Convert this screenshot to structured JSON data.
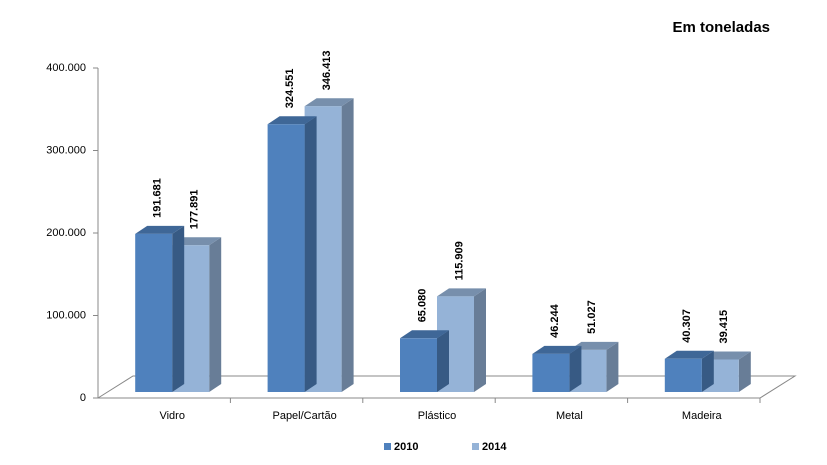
{
  "chart_data": {
    "type": "bar3d",
    "annotation": "Em toneladas",
    "categories": [
      "Vidro",
      "Papel/Cartão",
      "Plástico",
      "Metal",
      "Madeira"
    ],
    "series": [
      {
        "name": "2010",
        "color": "#4f81bd",
        "values": [
          191681,
          324551,
          65080,
          46244,
          40307
        ],
        "value_labels": [
          "191.681",
          "324.551",
          "65.080",
          "46.244",
          "40.307"
        ]
      },
      {
        "name": "2014",
        "color": "#95b3d7",
        "values": [
          177891,
          346413,
          115909,
          51027,
          39415
        ],
        "value_labels": [
          "177.891",
          "346.413",
          "115.909",
          "51.027",
          "39.415"
        ]
      }
    ],
    "ylim": [
      0,
      400000
    ],
    "yticks": [
      0,
      {
        "value": 100000,
        "label": "100.000"
      },
      {
        "value": 200000,
        "label": "200.000"
      },
      {
        "value": 300000,
        "label": "300.000"
      },
      {
        "value": 400000,
        "label": "400.000"
      }
    ],
    "legend": "bottom"
  }
}
